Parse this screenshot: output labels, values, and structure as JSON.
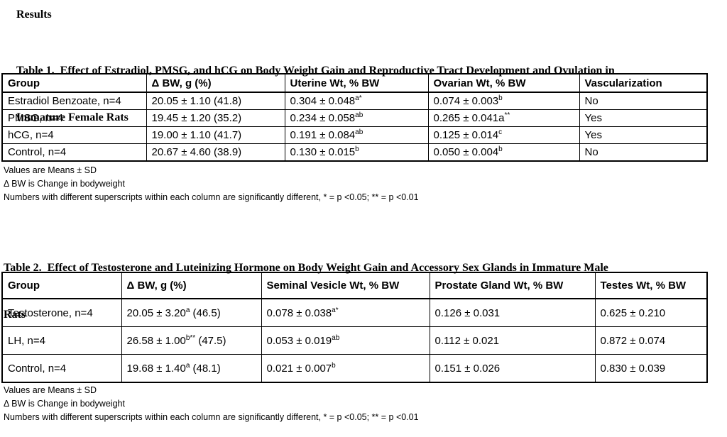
{
  "heading": "Results",
  "colors": {
    "text": "#000000",
    "table_border": "#000000",
    "background": "#ffffff"
  },
  "table1": {
    "caption_line1": "Table 1.  Effect of Estradiol, PMSG, and hCG on Body Weight Gain and Reproductive Tract Development and Ovulation in",
    "caption_line2": "Immature Female Rats",
    "headers": [
      "Group",
      "Δ BW, g (%)",
      "Uterine Wt, % BW",
      "Ovarian Wt, % BW",
      "Vascularization"
    ],
    "rows": [
      [
        "Estradiol Benzoate, n=4",
        "20.05 ± 1.10 (41.8)",
        "0.304 ± 0.048^{a*}",
        "0.074 ± 0.003^{b}",
        "No"
      ],
      [
        "PMSG, n=4",
        "19.45 ± 1.20 (35.2)",
        "0.234 ± 0.058^{ab}",
        "0.265 ± 0.041a^{**}",
        "Yes"
      ],
      [
        "hCG, n=4",
        "19.00 ± 1.10 (41.7)",
        "0.191 ± 0.084^{ab}",
        "0.125 ± 0.014^{c}",
        "Yes"
      ],
      [
        "Control, n=4",
        "20.67 ± 4.60 (38.9)",
        "0.130 ± 0.015^{b}",
        "0.050 ± 0.004^{b}",
        "No"
      ]
    ],
    "footnotes": [
      "Values are Means ± SD",
      "Δ BW is Change in bodyweight",
      "Numbers with different superscripts within each column are significantly different, * = p <0.05; ** = p <0.01"
    ]
  },
  "table2": {
    "caption_line1": "Table 2.  Effect of Testosterone and Luteinizing Hormone on Body Weight Gain and Accessory Sex Glands in Immature Male",
    "caption_line2": "Rats",
    "headers": [
      "Group",
      "Δ BW, g (%)",
      "Seminal Vesicle Wt, % BW",
      "Prostate Gland Wt, % BW",
      "Testes Wt, % BW"
    ],
    "rows": [
      [
        "Testosterone, n=4",
        "20.05 ± 3.20^{a} (46.5)",
        "0.078 ± 0.038^{a*}",
        "0.126 ± 0.031",
        "0.625 ± 0.210"
      ],
      [
        "LH, n=4",
        "26.58 ± 1.00^{b**} (47.5)",
        "0.053 ± 0.019^{ab}",
        "0.112 ± 0.021",
        "0.872 ± 0.074"
      ],
      [
        "Control, n=4",
        "19.68 ± 1.40^{a} (48.1)",
        "0.021 ± 0.007^{b}",
        "0.151 ± 0.026",
        "0.830 ± 0.039"
      ]
    ],
    "footnotes": [
      "Values are Means ± SD",
      "Δ BW is Change in bodyweight",
      "Numbers with different superscripts within each column are significantly different, * = p <0.05; ** = p <0.01"
    ]
  }
}
